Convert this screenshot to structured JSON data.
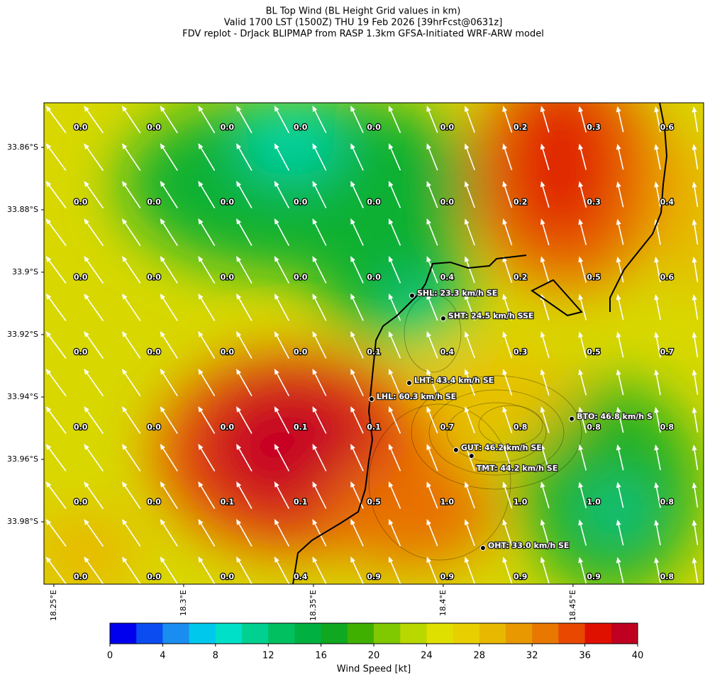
{
  "header": {
    "lines": [
      "BL Top Wind (BL Height Grid values in km)",
      "Valid 1700 LST (1500Z) THU 19 Feb 2026 [39hrFcst@0631z]",
      "FDV replot - DrJack BLIPMAP from RASP 1.3km GFSA-Initiated WRF-ARW model"
    ]
  },
  "map": {
    "xlim": [
      18.2462,
      18.5003
    ],
    "ylim": [
      -34.0,
      -33.8457
    ],
    "lat_ticks": [
      {
        "value": -33.86,
        "label": "33.86°S"
      },
      {
        "value": -33.88,
        "label": "33.88°S"
      },
      {
        "value": -33.9,
        "label": "33.9°S"
      },
      {
        "value": -33.92,
        "label": "33.92°S"
      },
      {
        "value": -33.94,
        "label": "33.94°S"
      },
      {
        "value": -33.96,
        "label": "33.96°S"
      },
      {
        "value": -33.98,
        "label": "33.98°S"
      }
    ],
    "lon_ticks": [
      {
        "value": 18.25,
        "label": "18.25°E"
      },
      {
        "value": 18.3,
        "label": "18.3°E"
      },
      {
        "value": 18.35,
        "label": "18.35°E"
      },
      {
        "value": 18.4,
        "label": "18.4°E"
      },
      {
        "value": 18.45,
        "label": "18.45°E"
      }
    ],
    "grid_values": [
      [
        "0.0",
        "0.0",
        "0.0",
        "0.0",
        "0.0",
        "0.0",
        "0.2",
        "0.3",
        "0.6"
      ],
      [
        "0.0",
        "0.0",
        "0.0",
        "0.0",
        "0.0",
        "0.0",
        "0.2",
        "0.3",
        "0.4"
      ],
      [
        "0.0",
        "0.0",
        "0.0",
        "0.0",
        "0.0",
        "0.4",
        "0.2",
        "0.5",
        "0.6"
      ],
      [
        "0.0",
        "0.0",
        "0.0",
        "0.0",
        "0.1",
        "0.4",
        "0.3",
        "0.5",
        "0.7"
      ],
      [
        "0.0",
        "0.0",
        "0.0",
        "0.1",
        "0.1",
        "0.7",
        "0.8",
        "0.8",
        "0.8"
      ],
      [
        "0.0",
        "0.0",
        "0.1",
        "0.1",
        "0.5",
        "1.0",
        "1.0",
        "1.0",
        "0.8"
      ],
      [
        "0.0",
        "0.0",
        "0.0",
        "0.4",
        "0.9",
        "0.9",
        "0.9",
        "0.9",
        "0.8"
      ]
    ],
    "stations": [
      {
        "label": "SHL: 23.3 km/h SE",
        "lon": 18.388,
        "lat": -33.9075
      },
      {
        "label": "SHT: 24.5 km/h SSE",
        "lon": 18.4,
        "lat": -33.9148
      },
      {
        "label": "LHT: 43.4 km/h SE",
        "lon": 18.3869,
        "lat": -33.9355
      },
      {
        "label": "LHL: 60.3 km/h SE",
        "lon": 18.3724,
        "lat": -33.9407
      },
      {
        "label": "BTO: 46.8 km/h S",
        "lon": 18.4495,
        "lat": -33.947
      },
      {
        "label": "GUT: 46.2 km/h SE",
        "lon": 18.4049,
        "lat": -33.957
      },
      {
        "label": "TMT: 44.2 km/h SE",
        "lon": 18.4109,
        "lat": -33.9589
      },
      {
        "label": "OHT: 33.0 km/h SE",
        "lon": 18.4153,
        "lat": -33.9884
      }
    ]
  },
  "colorbar": {
    "label": "Wind Speed [kt]",
    "lim": [
      0,
      40
    ],
    "ticks": [
      0,
      4,
      8,
      12,
      16,
      20,
      24,
      28,
      32,
      36,
      40
    ],
    "colors": [
      "#0000ee",
      "#0a4cf0",
      "#1a8ef0",
      "#00c8ec",
      "#00e0c8",
      "#00d090",
      "#00c060",
      "#00b040",
      "#10a820",
      "#40b000",
      "#80c800",
      "#b8d800",
      "#e0e000",
      "#e8d000",
      "#e8b800",
      "#e89800",
      "#e87800",
      "#e84800",
      "#e01000",
      "#c00020"
    ]
  }
}
